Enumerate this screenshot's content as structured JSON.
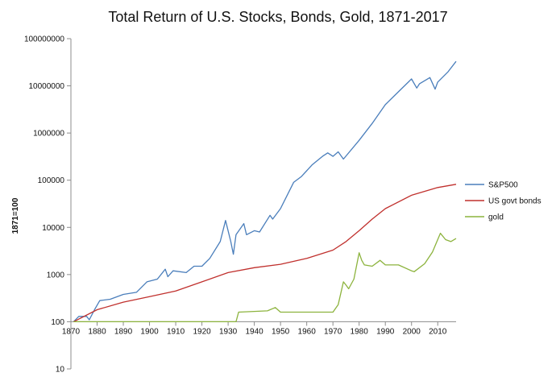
{
  "chart_data": {
    "type": "line",
    "title": "Total Return of U.S. Stocks, Bonds, Gold, 1871-2017",
    "xlabel": "",
    "ylabel": "1871=100",
    "y_scale": "log",
    "xlim": [
      1870,
      2017
    ],
    "ylim": [
      10,
      100000000
    ],
    "x_ticks": [
      "1870",
      "1880",
      "1890",
      "1900",
      "1910",
      "1920",
      "1930",
      "1940",
      "1950",
      "1960",
      "1970",
      "1980",
      "1990",
      "2000",
      "2010"
    ],
    "y_ticks": [
      "10",
      "100",
      "1000",
      "10000",
      "100000",
      "1000000",
      "10000000",
      "100000000"
    ],
    "x_axis_crosses_at": 100,
    "grid": false,
    "legend_position": "right",
    "series": [
      {
        "name": "S&P500",
        "color": "#4a7ebb",
        "x": [
          1871,
          1873,
          1876,
          1877,
          1879,
          1881,
          1885,
          1890,
          1895,
          1899,
          1903,
          1906,
          1907,
          1909,
          1914,
          1917,
          1920,
          1923,
          1927,
          1929,
          1931,
          1932,
          1933,
          1936,
          1937,
          1940,
          1942,
          1946,
          1947,
          1950,
          1955,
          1958,
          1962,
          1966,
          1968,
          1970,
          1972,
          1974,
          1980,
          1985,
          1990,
          1995,
          2000,
          2002,
          2003,
          2007,
          2009,
          2010,
          2014,
          2017
        ],
        "y": [
          100,
          130,
          130,
          110,
          180,
          280,
          300,
          380,
          420,
          700,
          800,
          1300,
          900,
          1200,
          1100,
          1500,
          1500,
          2200,
          5000,
          14000,
          5000,
          2700,
          7000,
          12000,
          7000,
          8500,
          8000,
          18000,
          15000,
          25000,
          90000,
          120000,
          210000,
          320000,
          380000,
          320000,
          400000,
          280000,
          700000,
          1600000,
          4000000,
          7500000,
          14000000,
          9000000,
          11000000,
          15000000,
          8500000,
          12000000,
          20000000,
          33000000
        ]
      },
      {
        "name": "US govt bonds",
        "color": "#c0302d",
        "x": [
          1871,
          1880,
          1890,
          1900,
          1910,
          1920,
          1930,
          1940,
          1950,
          1960,
          1970,
          1975,
          1980,
          1985,
          1990,
          2000,
          2010,
          2017
        ],
        "y": [
          100,
          180,
          260,
          340,
          450,
          700,
          1100,
          1400,
          1650,
          2200,
          3300,
          5000,
          8500,
          15000,
          25000,
          48000,
          70000,
          82000
        ]
      },
      {
        "name": "gold",
        "color": "#8cb33d",
        "x": [
          1871,
          1933,
          1934,
          1945,
          1948,
          1950,
          1970,
          1972,
          1974,
          1975,
          1976,
          1978,
          1980,
          1981,
          1982,
          1985,
          1988,
          1990,
          1995,
          2000,
          2001,
          2005,
          2008,
          2011,
          2013,
          2015,
          2017
        ],
        "y": [
          100,
          100,
          160,
          170,
          200,
          160,
          160,
          230,
          700,
          600,
          500,
          800,
          2900,
          2000,
          1600,
          1500,
          2000,
          1600,
          1600,
          1200,
          1150,
          1700,
          3000,
          7500,
          5500,
          5000,
          5800
        ]
      }
    ]
  }
}
